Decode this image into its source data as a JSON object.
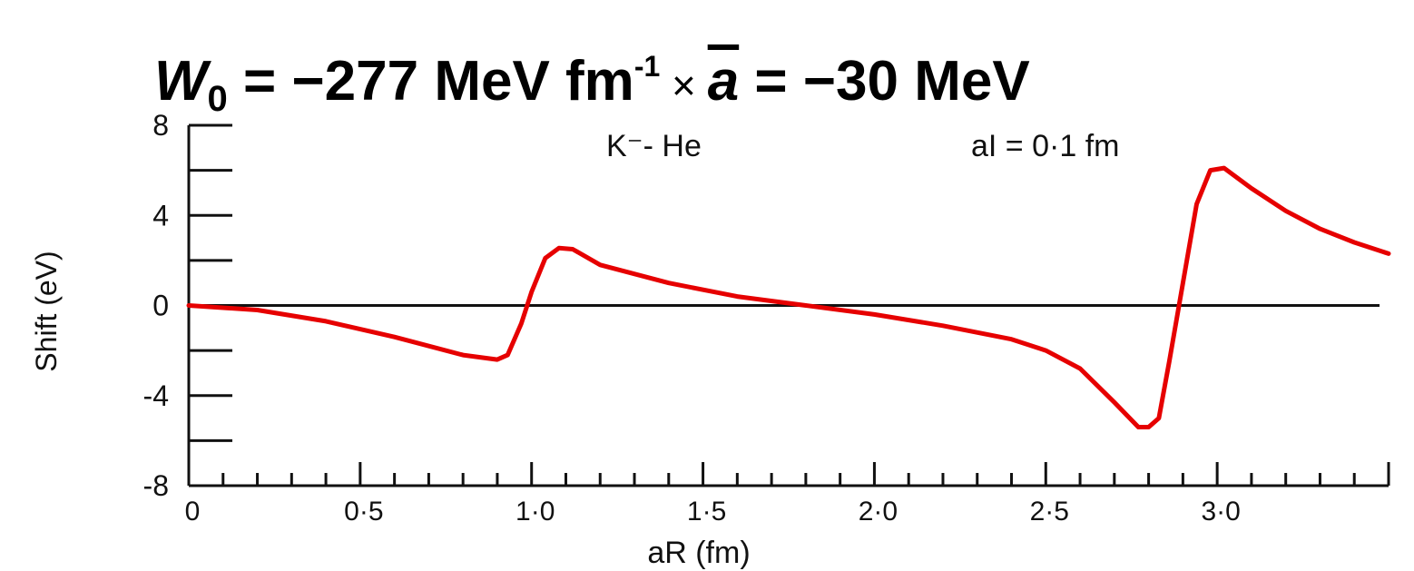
{
  "title": {
    "var": "W",
    "sub": "0",
    "eq1": " = −277 MeV fm",
    "sup": "-1",
    "times": " × ",
    "abar": "a",
    "eq2": " = −30 MeV"
  },
  "chart_data": {
    "type": "line",
    "annotations": [
      "K⁻- He",
      "aI = 0·1 fm"
    ],
    "xlabel": "aR (fm)",
    "ylabel": "Shift (eV)",
    "xlim": [
      0,
      3.5
    ],
    "ylim": [
      -8,
      8
    ],
    "x_ticks": [
      "0",
      "0·5",
      "1·0",
      "1·5",
      "2·0",
      "2·5",
      "3·0"
    ],
    "x_tick_values": [
      0,
      0.5,
      1.0,
      1.5,
      2.0,
      2.5,
      3.0
    ],
    "y_ticks": [
      "8",
      "4",
      "0",
      "-4",
      "-8"
    ],
    "y_tick_values": [
      8,
      4,
      0,
      -4,
      -8
    ],
    "series": [
      {
        "color": "#e60000",
        "x": [
          0,
          0.2,
          0.4,
          0.6,
          0.8,
          0.9,
          0.93,
          0.97,
          1.0,
          1.04,
          1.08,
          1.12,
          1.2,
          1.4,
          1.6,
          1.8,
          2.0,
          2.2,
          2.4,
          2.5,
          2.6,
          2.7,
          2.77,
          2.8,
          2.83,
          2.86,
          2.9,
          2.94,
          2.98,
          3.02,
          3.1,
          3.2,
          3.3,
          3.4,
          3.5
        ],
        "y": [
          0,
          -0.2,
          -0.7,
          -1.4,
          -2.2,
          -2.4,
          -2.2,
          -0.8,
          0.6,
          2.1,
          2.55,
          2.5,
          1.8,
          1.0,
          0.4,
          0.0,
          -0.4,
          -0.9,
          -1.5,
          -2.0,
          -2.8,
          -4.3,
          -5.4,
          -5.4,
          -5.0,
          -2.5,
          1.0,
          4.5,
          6.0,
          6.1,
          5.2,
          4.2,
          3.4,
          2.8,
          2.3
        ]
      }
    ]
  }
}
